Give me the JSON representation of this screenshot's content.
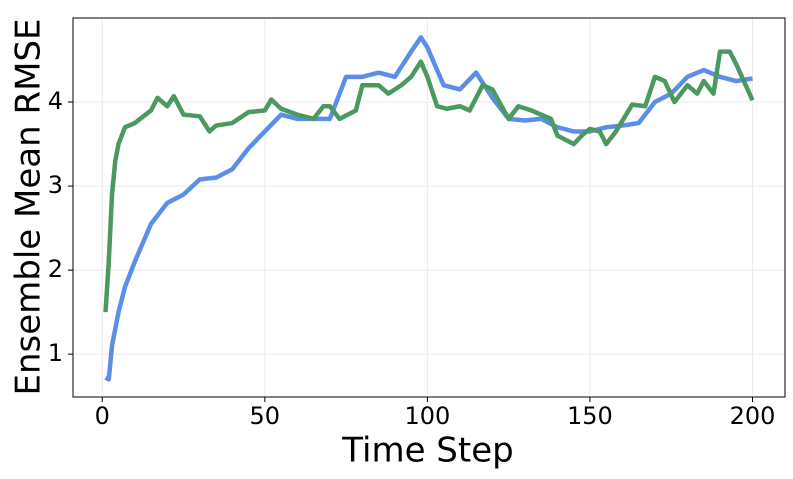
{
  "chart_data": {
    "type": "line",
    "xlabel": "Time Step",
    "ylabel": "Ensemble Mean RMSE",
    "xlim": [
      -9,
      210
    ],
    "ylim": [
      0.49,
      5.0
    ],
    "xticks": [
      0,
      50,
      100,
      150,
      200
    ],
    "yticks": [
      1,
      2,
      3,
      4
    ],
    "grid": true,
    "series": [
      {
        "color": "#5b8ee6",
        "x": [
          1,
          2,
          3,
          5,
          7,
          10,
          15,
          20,
          25,
          30,
          35,
          40,
          45,
          50,
          55,
          60,
          65,
          70,
          75,
          80,
          85,
          90,
          95,
          98,
          100,
          105,
          110,
          115,
          120,
          125,
          130,
          135,
          140,
          145,
          150,
          155,
          160,
          165,
          170,
          175,
          180,
          185,
          190,
          195,
          200
        ],
        "values": [
          0.72,
          0.7,
          1.1,
          1.5,
          1.8,
          2.1,
          2.55,
          2.8,
          2.9,
          3.08,
          3.1,
          3.2,
          3.45,
          3.65,
          3.85,
          3.8,
          3.8,
          3.8,
          4.3,
          4.3,
          4.35,
          4.3,
          4.6,
          4.77,
          4.65,
          4.2,
          4.15,
          4.35,
          4.05,
          3.8,
          3.78,
          3.8,
          3.7,
          3.65,
          3.65,
          3.7,
          3.72,
          3.75,
          4.0,
          4.1,
          4.3,
          4.38,
          4.3,
          4.25,
          4.28
        ]
      },
      {
        "color": "#4a9a5f",
        "x": [
          1,
          2,
          3,
          4,
          5,
          7,
          10,
          15,
          17,
          20,
          22,
          25,
          30,
          33,
          35,
          40,
          45,
          50,
          52,
          55,
          60,
          65,
          68,
          70,
          73,
          78,
          80,
          85,
          88,
          92,
          95,
          98,
          100,
          103,
          106,
          110,
          113,
          117,
          120,
          125,
          128,
          132,
          135,
          138,
          140,
          145,
          148,
          150,
          153,
          155,
          158,
          163,
          167,
          170,
          173,
          176,
          180,
          183,
          185,
          188,
          190,
          193,
          195,
          200
        ],
        "values": [
          1.5,
          2.1,
          2.9,
          3.3,
          3.5,
          3.7,
          3.75,
          3.9,
          4.05,
          3.95,
          4.07,
          3.85,
          3.83,
          3.65,
          3.72,
          3.75,
          3.88,
          3.9,
          4.03,
          3.92,
          3.85,
          3.8,
          3.95,
          3.95,
          3.8,
          3.9,
          4.2,
          4.2,
          4.1,
          4.2,
          4.3,
          4.48,
          4.3,
          3.95,
          3.92,
          3.95,
          3.9,
          4.2,
          4.15,
          3.8,
          3.95,
          3.9,
          3.85,
          3.8,
          3.6,
          3.5,
          3.62,
          3.68,
          3.65,
          3.5,
          3.65,
          3.97,
          3.95,
          4.3,
          4.25,
          4.0,
          4.2,
          4.1,
          4.25,
          4.1,
          4.6,
          4.6,
          4.45,
          4.02
        ]
      }
    ]
  }
}
